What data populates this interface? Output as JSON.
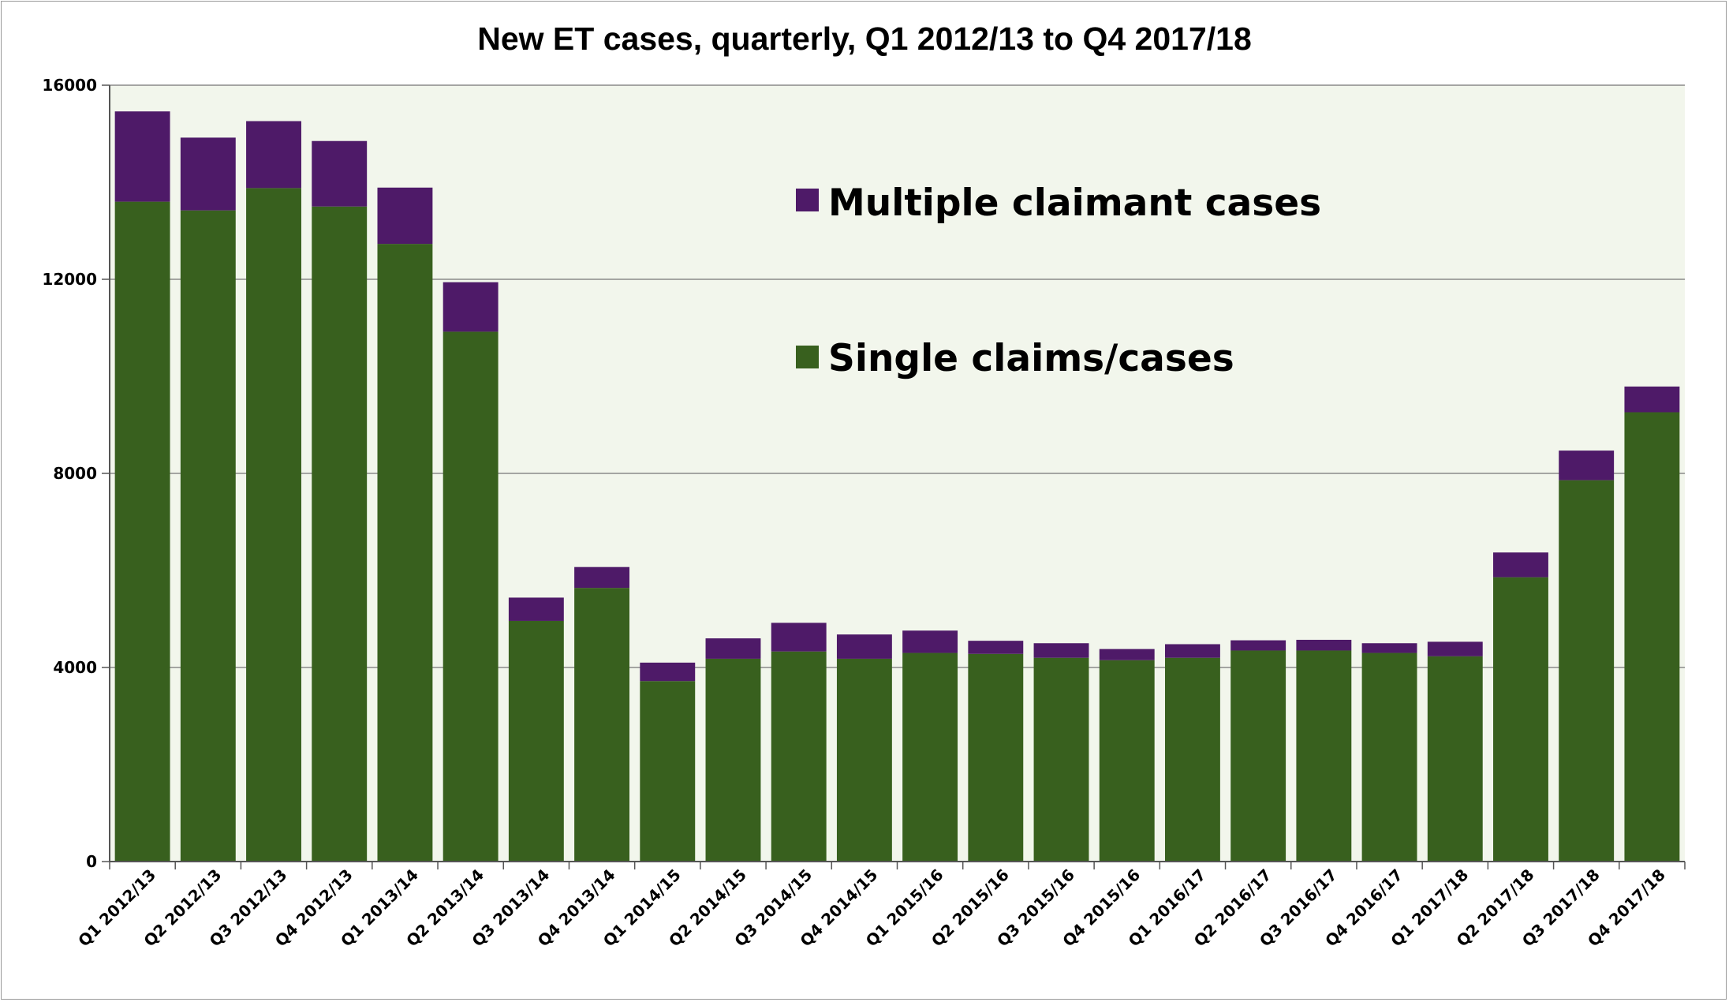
{
  "chart_data": {
    "type": "bar",
    "stacked": true,
    "title": "New ET cases, quarterly, Q1 2012/13 to Q4 2017/18",
    "xlabel": "",
    "ylabel": "",
    "ylim": [
      0,
      16000
    ],
    "yticks": [
      0,
      4000,
      8000,
      12000,
      16000
    ],
    "grid": true,
    "legend_position": "inside-top-right",
    "categories": [
      "Q1 2012/13",
      "Q2 2012/13",
      "Q3 2012/13",
      "Q4 2012/13",
      "Q1 2013/14",
      "Q2 2013/14",
      "Q3 2013/14",
      "Q4 2013/14",
      "Q1 2014/15",
      "Q2 2014/15",
      "Q3 2014/15",
      "Q4 2014/15",
      "Q1 2015/16",
      "Q2 2015/16",
      "Q3 2015/16",
      "Q4 2015/16",
      "Q1 2016/17",
      "Q2 2016/17",
      "Q3 2016/17",
      "Q4 2016/17",
      "Q1 2017/18",
      "Q2 2017/18",
      "Q3 2017/18",
      "Q4 2017/18"
    ],
    "series": [
      {
        "name": "Single claims/cases",
        "color": "#38601e",
        "values": [
          13600,
          13420,
          13880,
          13500,
          12730,
          10920,
          4960,
          5640,
          3720,
          4180,
          4330,
          4180,
          4300,
          4280,
          4200,
          4150,
          4200,
          4350,
          4350,
          4300,
          4230,
          5860,
          7860,
          9260
        ]
      },
      {
        "name": "Multiple claimant cases",
        "color": "#4e1a68",
        "values": [
          1860,
          1500,
          1380,
          1350,
          1160,
          1020,
          480,
          430,
          380,
          420,
          590,
          500,
          460,
          270,
          300,
          230,
          280,
          210,
          220,
          200,
          300,
          510,
          610,
          530
        ]
      }
    ],
    "colors": {
      "plot_background": "#f2f6ec",
      "gridline": "#8a8a8a",
      "axis": "#555555"
    }
  }
}
